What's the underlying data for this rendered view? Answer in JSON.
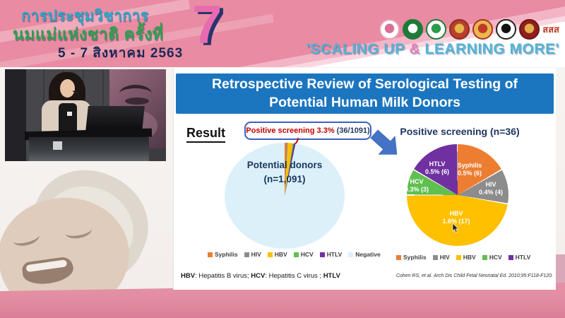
{
  "header": {
    "title_line1": "การประชุมวิชาการ",
    "title_line2": "นมแม่แห่งชาติ ครั้งที่",
    "date_line": "5 - 7 สิงหาคม 2563",
    "edition_number": "7",
    "slogan_open": "'SCALING UP ",
    "slogan_amp": "&",
    "slogan_close": " LEARNING MORE'",
    "logos": [
      {
        "name": "breastfeeding-foundation-logo",
        "bg": "#ffffff",
        "border": "#e8a0b8",
        "dot": "#d86f96"
      },
      {
        "name": "ministry-public-health-logo",
        "bg": "#1d7a38",
        "border": "#1d7a38",
        "dot": "#ffffff"
      },
      {
        "name": "health-department-logo",
        "bg": "#ffffff",
        "border": "#1d7a38",
        "dot": "#2b9a4c"
      },
      {
        "name": "royal-college-logo",
        "bg": "#b5402c",
        "border": "#8f2b1c",
        "dot": "#e8b54a"
      },
      {
        "name": "royal-institute-logo",
        "bg": "#e9b94d",
        "border": "#b03226",
        "dot": "#c0392b"
      },
      {
        "name": "pediatric-society-logo",
        "bg": "#ffffff",
        "border": "#222222",
        "dot": "#111111"
      },
      {
        "name": "nursing-council-logo",
        "bg": "#8f1f1f",
        "border": "#6e1414",
        "dot": "#e2b04a"
      },
      {
        "name": "thai-health-sss-logo",
        "text": "สสส"
      }
    ]
  },
  "slide": {
    "title_line1": "Retrospective Review of Serological Testing of",
    "title_line2": "Potential Human Milk Donors",
    "result_label": "Result",
    "callout": {
      "highlight": "Positive screening 3.3%",
      "detail": "(36/1091)"
    },
    "footnote": {
      "p1_abbr": "HBV",
      "p1_text": ": Hepatitis B virus; ",
      "p2_abbr": "HCV",
      "p2_text": ": Hepatitis C virus ; ",
      "p3_abbr": "HTLV",
      "p3_text": ": human T cell lymphotropic virus"
    },
    "citation": "Cohen RS, et al. Arch Dis Child Fetal Neonatal Ed. 2010;95:F118-F120."
  },
  "chart_data": [
    {
      "type": "pie",
      "title": "Potential donors (n=1,091)",
      "center_label_line1": "Potential donors",
      "center_label_line2": "(n=1,091)",
      "categories": [
        "Syphilis",
        "HIV",
        "HBV",
        "HCV",
        "HTLV",
        "Negative"
      ],
      "values": [
        6,
        4,
        17,
        3,
        6,
        1055
      ],
      "total": 1091,
      "colors": [
        "#ed7d31",
        "#8c8c8c",
        "#ffc000",
        "#5fbf50",
        "#7030a0",
        "#dcf0fa"
      ],
      "legend_position": "bottom",
      "annotation": "Positive screening 3.3% (36/1091)"
    },
    {
      "type": "pie",
      "title": "Positive screening (n=36)",
      "categories": [
        "Syphilis",
        "HIV",
        "HBV",
        "HCV",
        "HTLV"
      ],
      "values": [
        6,
        4,
        17,
        3,
        6
      ],
      "percent_labels": [
        "0.5% (6)",
        "0.4% (4)",
        "1.6% (17)",
        "0.3% (3)",
        "0.5% (6)"
      ],
      "colors": [
        "#ed7d31",
        "#8c8c8c",
        "#ffc000",
        "#5fbf50",
        "#7030a0"
      ],
      "legend_position": "bottom"
    }
  ]
}
